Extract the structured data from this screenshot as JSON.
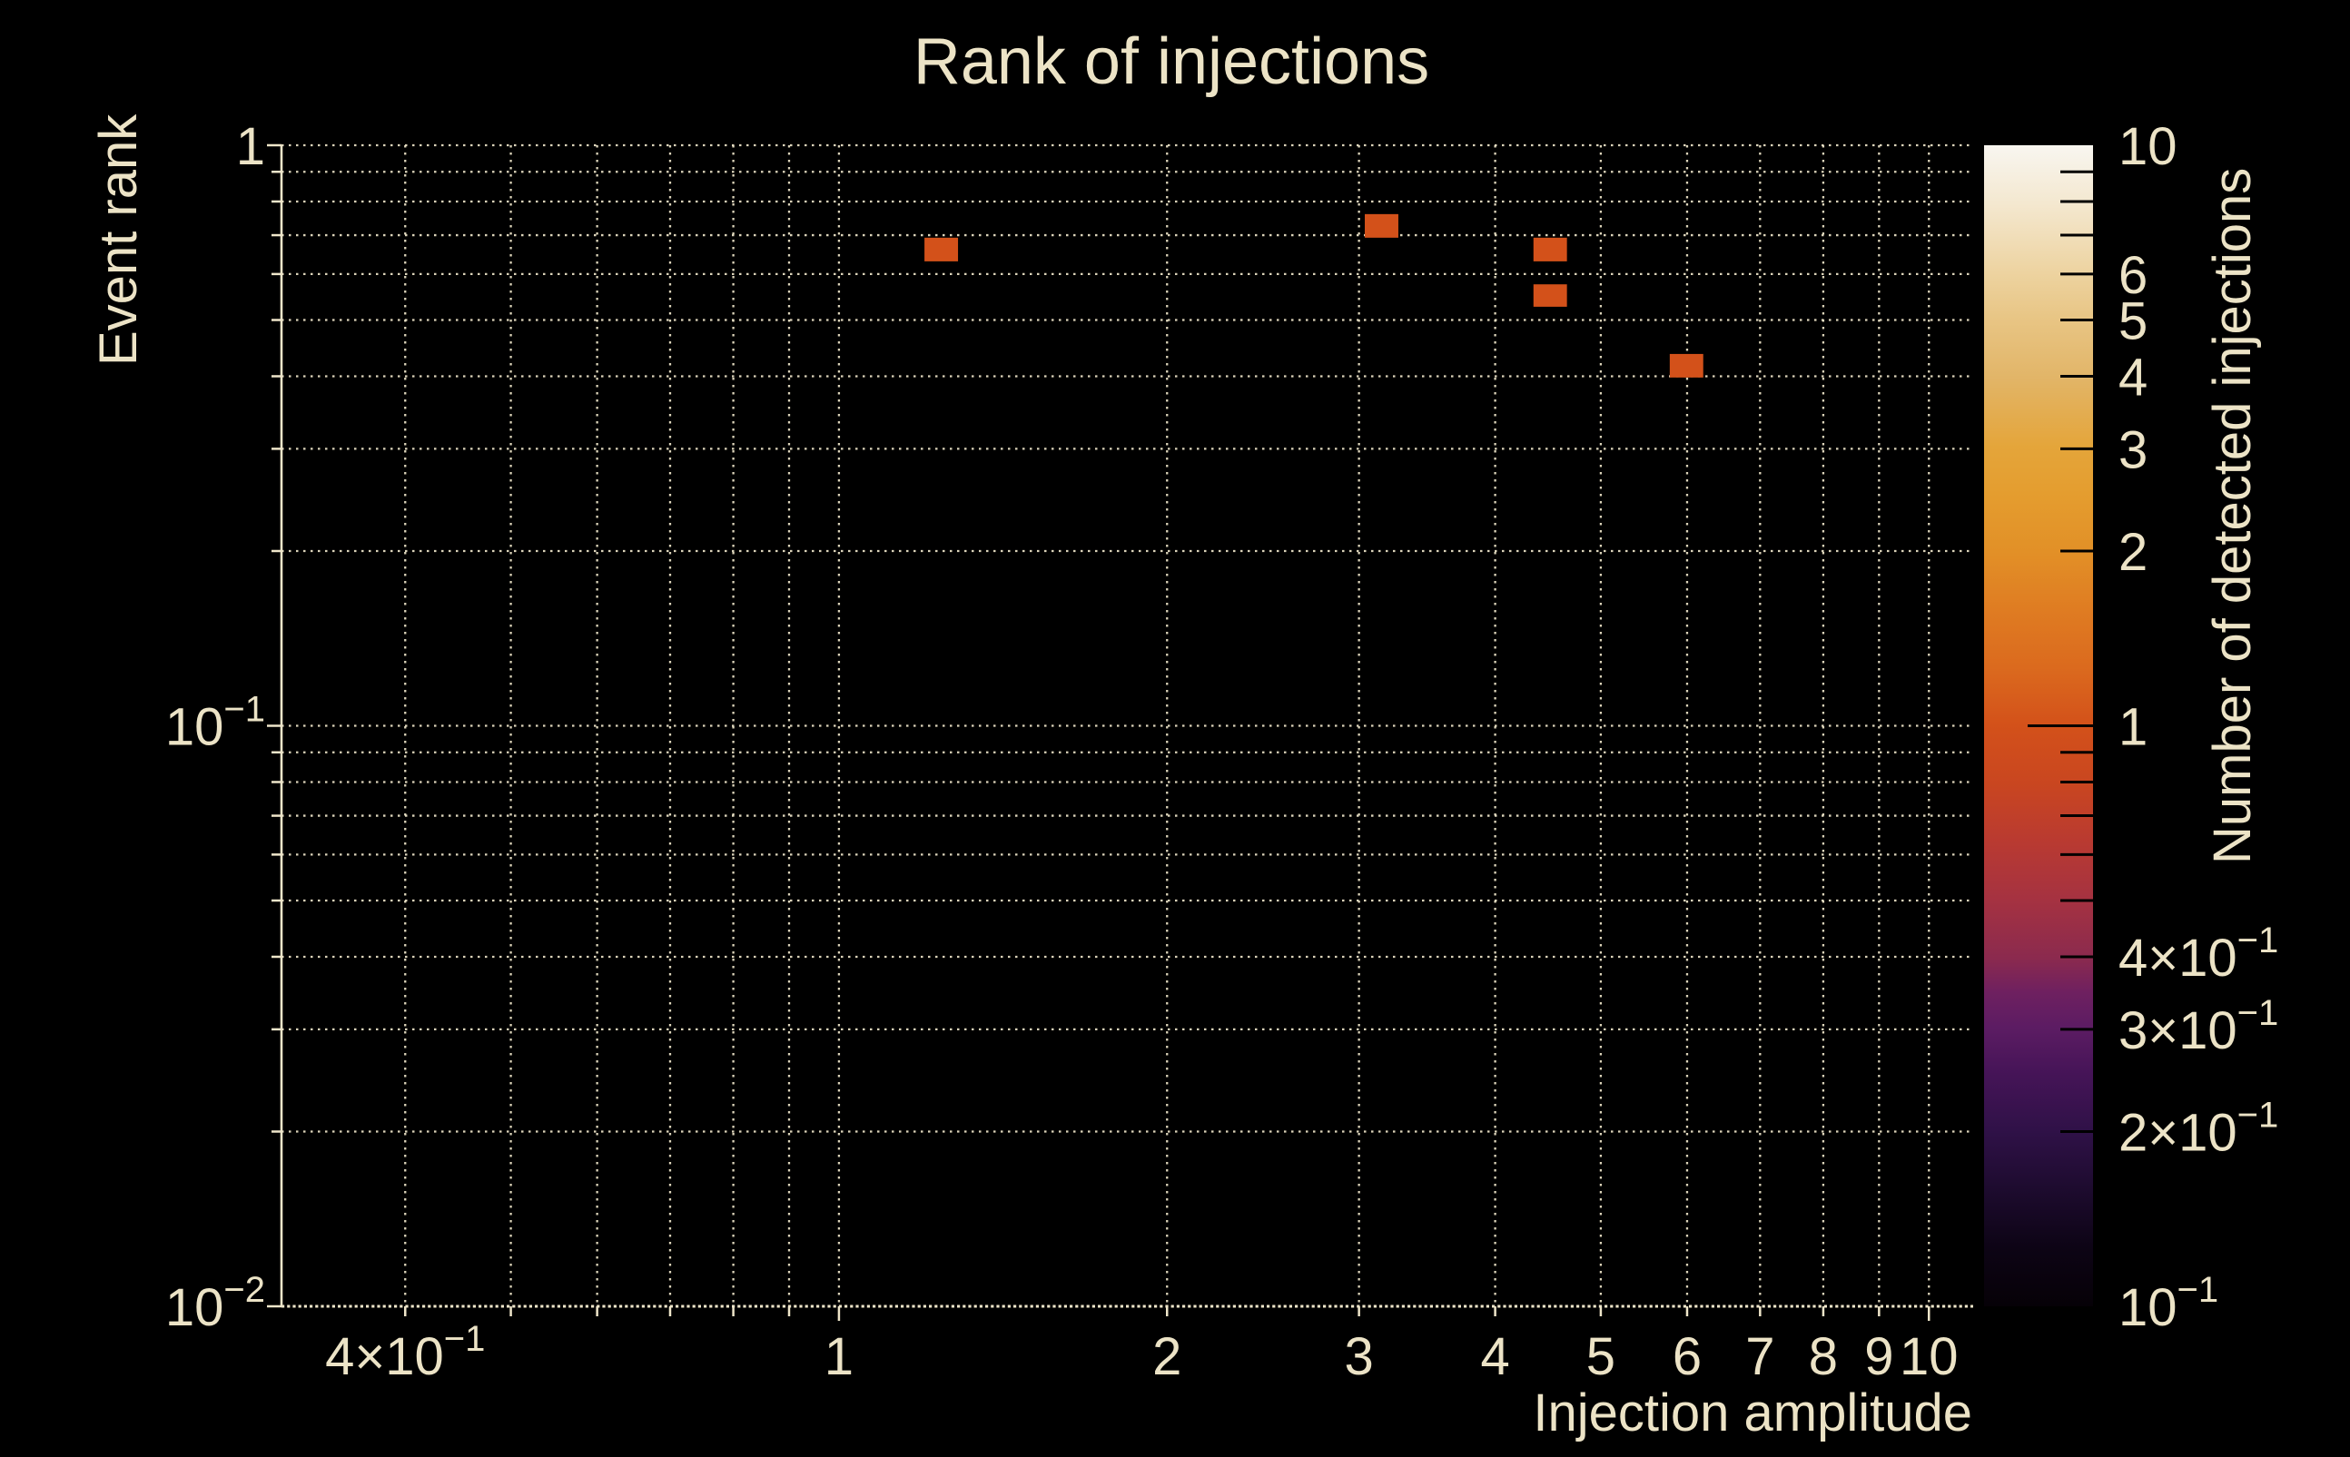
{
  "chart_data": {
    "type": "heatmap",
    "title": "Rank of injections",
    "background_color": "#000000",
    "text_color": "#ece3c6",
    "grid_color": "#efe6ca",
    "x_axis": {
      "label": "Injection amplitude",
      "scale": "log",
      "min": 0.308,
      "max": 10.98,
      "ticks": [
        {
          "value": 0.4,
          "label": "4×10^−1"
        },
        {
          "value": 1,
          "label": "1"
        },
        {
          "value": 2,
          "label": "2"
        },
        {
          "value": 3,
          "label": "3"
        },
        {
          "value": 4,
          "label": "4"
        },
        {
          "value": 5,
          "label": "5"
        },
        {
          "value": 6,
          "label": "6"
        },
        {
          "value": 7,
          "label": "7"
        },
        {
          "value": 8,
          "label": "8"
        },
        {
          "value": 9,
          "label": "9"
        },
        {
          "value": 10,
          "label": "10"
        }
      ],
      "gridlines": [
        0.4,
        0.5,
        0.6,
        0.7,
        0.8,
        0.9,
        1,
        2,
        3,
        4,
        5,
        6,
        7,
        8,
        9,
        10
      ],
      "major": [
        1,
        10
      ]
    },
    "y_axis": {
      "label": "Event rank",
      "scale": "log",
      "min": 0.01,
      "max": 1.0,
      "ticks": [
        {
          "value": 1,
          "label": "1"
        },
        {
          "value": 0.1,
          "label": "10^−1"
        },
        {
          "value": 0.01,
          "label": "10^−2"
        }
      ],
      "gridlines": [
        1,
        0.9,
        0.8,
        0.7,
        0.6,
        0.5,
        0.4,
        0.3,
        0.2,
        0.1,
        0.09,
        0.08,
        0.07,
        0.06,
        0.05,
        0.04,
        0.03,
        0.02
      ],
      "major": [
        1,
        0.1,
        0.01
      ]
    },
    "colorbar": {
      "label": "Number of detected injections",
      "scale": "log",
      "min": 0.1,
      "max": 10,
      "ticks": [
        {
          "value": 10,
          "label": "10"
        },
        {
          "value": 6,
          "label": "6"
        },
        {
          "value": 5,
          "label": "5"
        },
        {
          "value": 4,
          "label": "4"
        },
        {
          "value": 3,
          "label": "3"
        },
        {
          "value": 2,
          "label": "2"
        },
        {
          "value": 1,
          "label": "1"
        },
        {
          "value": 0.4,
          "label": "4×10^−1"
        },
        {
          "value": 0.3,
          "label": "3×10^−1"
        },
        {
          "value": 0.2,
          "label": "2×10^−1"
        },
        {
          "value": 0.1,
          "label": "10^−1"
        }
      ],
      "minor_ticks": [
        0.2,
        0.3,
        0.4,
        0.5,
        0.6,
        0.7,
        0.8,
        0.9,
        2,
        3,
        4,
        5,
        6,
        7,
        8,
        9
      ],
      "major_ticks": [
        1
      ],
      "gradient_stops": [
        [
          0.0,
          "#060107"
        ],
        [
          0.05,
          "#0d0415"
        ],
        [
          0.1,
          "#1d0b2e"
        ],
        [
          0.15,
          "#2f1147"
        ],
        [
          0.2,
          "#451457"
        ],
        [
          0.24,
          "#5c1c63"
        ],
        [
          0.27,
          "#6e2060"
        ],
        [
          0.3,
          "#8b2a4e"
        ],
        [
          0.35,
          "#a53241"
        ],
        [
          0.4,
          "#b93a31"
        ],
        [
          0.45,
          "#c94620"
        ],
        [
          0.5,
          "#d3511a"
        ],
        [
          0.55,
          "#db6a1e"
        ],
        [
          0.6,
          "#df7c22"
        ],
        [
          0.65,
          "#e29027"
        ],
        [
          0.7,
          "#e49d2f"
        ],
        [
          0.74,
          "#e4a53a"
        ],
        [
          0.8,
          "#e2b568"
        ],
        [
          0.85,
          "#e8c584"
        ],
        [
          0.89,
          "#edd3a0"
        ],
        [
          0.95,
          "#f4e8d0"
        ],
        [
          1.0,
          "#f8f6f0"
        ]
      ]
    },
    "bins": [
      {
        "x_range": [
          1.198,
          1.286
        ],
        "y_range": [
          0.631,
          0.693
        ],
        "count": 1
      },
      {
        "x_range": [
          3.037,
          3.26
        ],
        "y_range": [
          0.693,
          0.761
        ],
        "count": 1
      },
      {
        "x_range": [
          4.337,
          4.655
        ],
        "y_range": [
          0.631,
          0.693
        ],
        "count": 1
      },
      {
        "x_range": [
          4.337,
          4.655
        ],
        "y_range": [
          0.527,
          0.576
        ],
        "count": 1
      },
      {
        "x_range": [
          5.784,
          6.208
        ],
        "y_range": [
          0.398,
          0.437
        ],
        "count": 1
      }
    ]
  }
}
